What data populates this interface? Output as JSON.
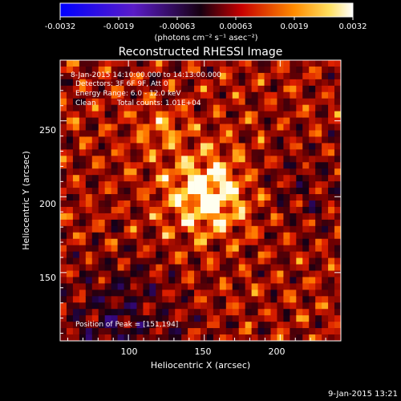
{
  "colorbar": {
    "ticks": [
      "-0.0032",
      "-0.0019",
      "-0.00063",
      "0.00063",
      "0.0019",
      "0.0032"
    ],
    "units_label": "(photons cm⁻² s⁻¹ asec⁻²)",
    "range": [
      -0.0032,
      0.0032
    ]
  },
  "chart_data": {
    "type": "heatmap",
    "title": "Reconstructed RHESSI Image",
    "xlabel": "Heliocentric X (arcsec)",
    "ylabel": "Heliocentric Y (arcsec)",
    "xlim": [
      55,
      240
    ],
    "ylim": [
      105,
      290
    ],
    "x_ticks": [
      100,
      150,
      200
    ],
    "y_ticks": [
      150,
      200,
      250
    ],
    "colormap": "red-temperature (blue negative to white positive)",
    "annotations": [
      "8-Jan-2015 14:10:00.000 to 14:13:00.000",
      "Detectors: 3F 6F 9F, Att 0",
      "Energy Range: 6.0 - 12.0 keV",
      "Clean",
      "Total counts: 1.01E+04"
    ],
    "peak_label": "Position of Peak = [151,194]",
    "peak": [
      151,
      194
    ]
  },
  "footer": {
    "timestamp": "9-Jan-2015 13:21"
  }
}
